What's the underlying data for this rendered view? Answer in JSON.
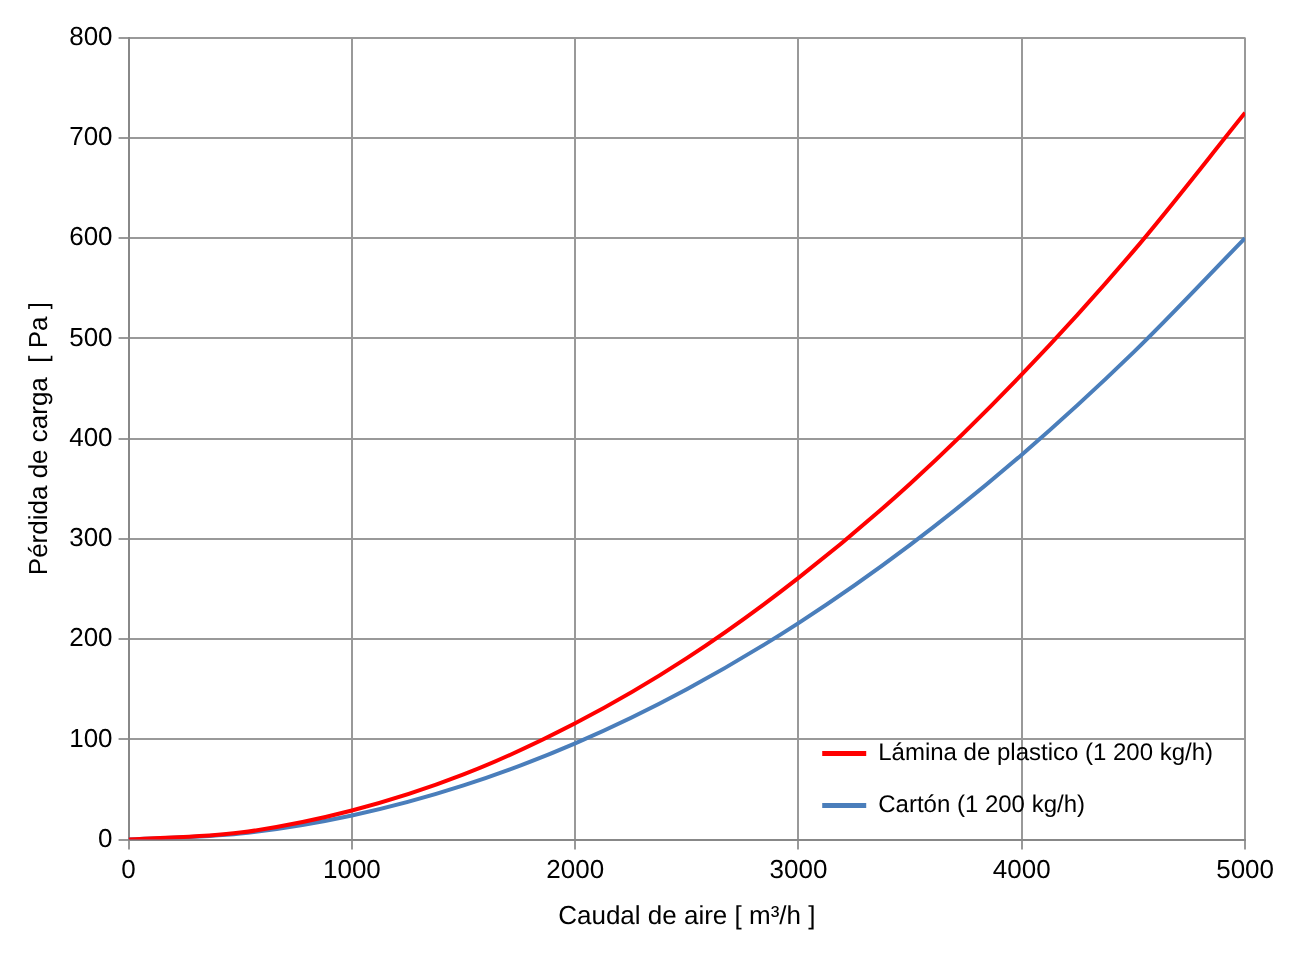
{
  "chart_data": {
    "type": "line",
    "xlabel": "Caudal de aire [ m³/h ]",
    "ylabel": "Pérdida de carga  [ Pa ]",
    "x": [
      0,
      500,
      1000,
      1500,
      2000,
      2500,
      3000,
      3500,
      4000,
      4500,
      5000
    ],
    "series": [
      {
        "name": "Lámina de plastico (1 200 kg/h)",
        "color": "#ff0000",
        "values": [
          0,
          7,
          29,
          65,
          116,
          181,
          261,
          355,
          464,
          587,
          725
        ]
      },
      {
        "name": "Cartón (1 200 kg/h)",
        "color": "#4a7ebb",
        "values": [
          0,
          6,
          24,
          54,
          96,
          150,
          216,
          294,
          384,
          486,
          600
        ]
      }
    ],
    "xlim": [
      0,
      5000
    ],
    "xticks": [
      0,
      1000,
      2000,
      3000,
      4000,
      5000
    ],
    "ylim": [
      0,
      800
    ],
    "yticks": [
      0,
      100,
      200,
      300,
      400,
      500,
      600,
      700,
      800
    ],
    "grid": true,
    "legend": "bottom right",
    "marker": "none",
    "line_style": "solid"
  }
}
